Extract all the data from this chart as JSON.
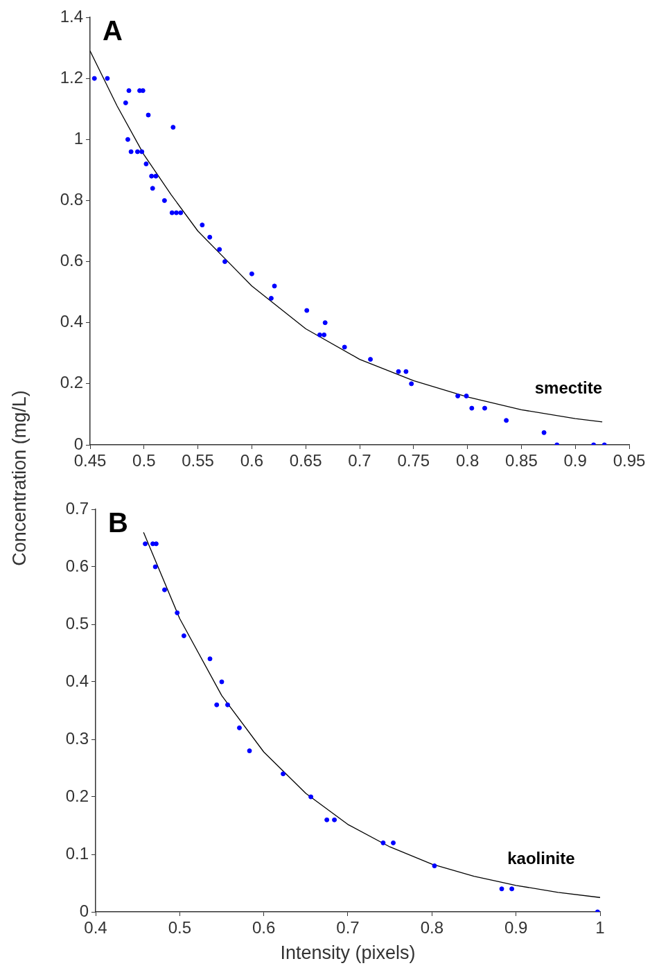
{
  "chart_data": [
    {
      "type": "scatter",
      "ylabel": "Concentration (mg/L)",
      "annotations": [
        "A",
        "smectite"
      ],
      "xlim": [
        0.45,
        0.95
      ],
      "xticks": [
        0.45,
        0.5,
        0.55,
        0.6,
        0.65,
        0.7,
        0.75,
        0.8,
        0.85,
        0.9,
        0.95
      ],
      "ylim": [
        0,
        1.4
      ],
      "yticks": [
        0,
        0.2,
        0.4,
        0.6,
        0.8,
        1,
        1.2,
        1.4
      ],
      "grid": false,
      "legend": false,
      "marker": "circle",
      "series": [
        {
          "type": "scatter",
          "color": "#0000ff",
          "x": [
            0.454,
            0.466,
            0.486,
            0.496,
            0.499,
            0.483,
            0.504,
            0.527,
            0.485,
            0.488,
            0.494,
            0.498,
            0.502,
            0.507,
            0.511,
            0.508,
            0.519,
            0.526,
            0.53,
            0.534,
            0.554,
            0.561,
            0.57,
            0.575,
            0.6,
            0.621,
            0.618,
            0.651,
            0.668,
            0.663,
            0.667,
            0.686,
            0.71,
            0.736,
            0.743,
            0.748,
            0.791,
            0.799,
            0.804,
            0.816,
            0.836,
            0.871,
            0.883,
            0.917,
            0.927
          ],
          "values": [
            1.2,
            1.2,
            1.16,
            1.16,
            1.16,
            1.12,
            1.08,
            1.04,
            1,
            0.96,
            0.96,
            0.96,
            0.92,
            0.88,
            0.88,
            0.84,
            0.8,
            0.76,
            0.76,
            0.76,
            0.72,
            0.68,
            0.64,
            0.6,
            0.56,
            0.52,
            0.48,
            0.44,
            0.4,
            0.36,
            0.36,
            0.32,
            0.28,
            0.24,
            0.24,
            0.2,
            0.16,
            0.16,
            0.12,
            0.12,
            0.08,
            0.04,
            0,
            0,
            0
          ]
        },
        {
          "type": "line",
          "color": "#000000",
          "marker": "none",
          "line_style": "solid",
          "x": [
            0.45,
            0.475,
            0.5,
            0.525,
            0.55,
            0.575,
            0.6,
            0.65,
            0.7,
            0.75,
            0.8,
            0.85,
            0.9,
            0.925
          ],
          "values": [
            1.29,
            1.11,
            0.95,
            0.82,
            0.7,
            0.61,
            0.52,
            0.38,
            0.28,
            0.21,
            0.157,
            0.115,
            0.086,
            0.075
          ]
        }
      ]
    },
    {
      "type": "scatter",
      "xlabel": "Intensity (pixels)",
      "annotations": [
        "B",
        "kaolinite"
      ],
      "xlim": [
        0.4,
        1
      ],
      "xticks": [
        0.4,
        0.5,
        0.6,
        0.7,
        0.8,
        0.9,
        1
      ],
      "ylim": [
        0,
        0.7
      ],
      "yticks": [
        0,
        0.1,
        0.2,
        0.3,
        0.4,
        0.5,
        0.6,
        0.7
      ],
      "grid": false,
      "legend": false,
      "marker": "circle",
      "series": [
        {
          "type": "scatter",
          "color": "#0000ff",
          "x": [
            0.459,
            0.468,
            0.472,
            0.471,
            0.482,
            0.497,
            0.505,
            0.536,
            0.55,
            0.544,
            0.557,
            0.571,
            0.583,
            0.623,
            0.656,
            0.675,
            0.684,
            0.742,
            0.754,
            0.803,
            0.883,
            0.895,
            0.997
          ],
          "values": [
            0.64,
            0.64,
            0.64,
            0.6,
            0.56,
            0.52,
            0.48,
            0.44,
            0.4,
            0.36,
            0.36,
            0.32,
            0.28,
            0.24,
            0.2,
            0.16,
            0.16,
            0.12,
            0.12,
            0.08,
            0.04,
            0.04,
            0
          ]
        },
        {
          "type": "line",
          "color": "#000000",
          "marker": "none",
          "line_style": "solid",
          "x": [
            0.457,
            0.5,
            0.55,
            0.6,
            0.65,
            0.7,
            0.75,
            0.8,
            0.85,
            0.9,
            0.95,
            1
          ],
          "values": [
            0.66,
            0.51,
            0.376,
            0.278,
            0.206,
            0.152,
            0.113,
            0.083,
            0.062,
            0.046,
            0.034,
            0.025
          ]
        }
      ]
    }
  ]
}
